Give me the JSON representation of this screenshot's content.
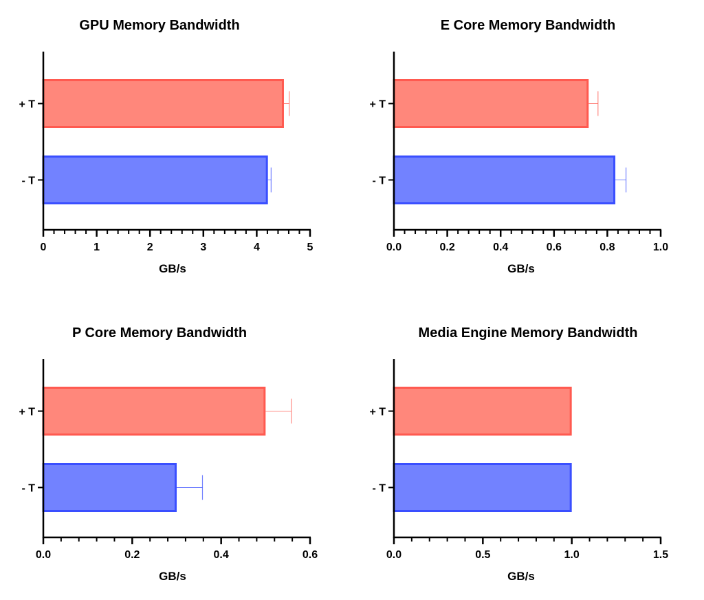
{
  "colors": {
    "plus_fill": "#ff877b",
    "plus_stroke": "#ff5a50",
    "minus_fill": "#7282ff",
    "minus_stroke": "#3a4fff",
    "axis": "#000000"
  },
  "chart_data": [
    {
      "type": "bar",
      "orientation": "horizontal",
      "title": "GPU Memory Bandwidth",
      "xlabel": "GB/s",
      "categories": [
        "+ T",
        "- T"
      ],
      "values": [
        4.51,
        4.21
      ],
      "errors": [
        0.1,
        0.06
      ],
      "xlim": [
        0,
        5
      ],
      "xticks": [
        "0",
        "1",
        "2",
        "3",
        "4",
        "5"
      ],
      "minor_per_major": 5
    },
    {
      "type": "bar",
      "orientation": "horizontal",
      "title": "E Core Memory Bandwidth",
      "xlabel": "GB/s",
      "categories": [
        "+ T",
        "- T"
      ],
      "values": [
        0.73,
        0.83
      ],
      "errors": [
        0.035,
        0.04
      ],
      "xlim": [
        0,
        1.0
      ],
      "xticks": [
        "0.0",
        "0.2",
        "0.4",
        "0.6",
        "0.8",
        "1.0"
      ],
      "minor_per_major": 5
    },
    {
      "type": "bar",
      "orientation": "horizontal",
      "title": "P Core Memory Bandwidth",
      "xlabel": "GB/s",
      "categories": [
        "+ T",
        "- T"
      ],
      "values": [
        0.5,
        0.3
      ],
      "errors": [
        0.058,
        0.058
      ],
      "xlim": [
        0,
        0.6
      ],
      "xticks": [
        "0.0",
        "0.2",
        "0.4",
        "0.6"
      ],
      "minor_per_major": 5
    },
    {
      "type": "bar",
      "orientation": "horizontal",
      "title": "Media Engine Memory Bandwidth",
      "xlabel": "GB/s",
      "categories": [
        "+ T",
        "- T"
      ],
      "values": [
        1.0,
        1.0
      ],
      "errors": [
        0,
        0
      ],
      "xlim": [
        0,
        1.5
      ],
      "xticks": [
        "0.0",
        "0.5",
        "1.0",
        "1.5"
      ],
      "minor_per_major": 5
    }
  ]
}
